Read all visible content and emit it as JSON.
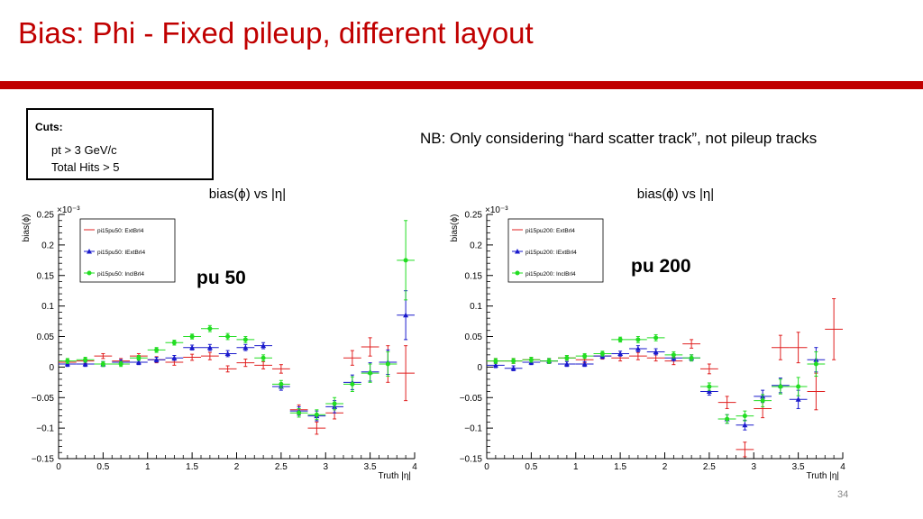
{
  "slide": {
    "title": "Bias: Phi - Fixed pileup, different layout",
    "cuts_title": "Cuts:",
    "cuts": [
      "pt > 3 GeV/c",
      "Total Hits > 5"
    ],
    "note": "NB: Only considering “hard scatter track”, not pileup tracks",
    "page_number": "34"
  },
  "colors": {
    "accent": "#c00000",
    "ext": "#e02020",
    "iext": "#1a1acc",
    "incl": "#22dd22"
  },
  "chart_data": [
    {
      "type": "scatter",
      "title": "bias(ϕ) vs |η|",
      "xlabel": "Truth |η|",
      "ylabel": "bias(ϕ)",
      "exponent": "×10⁻³",
      "xlim": [
        0,
        4
      ],
      "ylim": [
        -0.15,
        0.25
      ],
      "xticks": [
        "0",
        "0.5",
        "1",
        "1.5",
        "2",
        "2.5",
        "3",
        "3.5",
        "4"
      ],
      "yticks": [
        "0.25",
        "0.2",
        "0.15",
        "0.1",
        "0.05",
        "0",
        "−0.05",
        "−0.1",
        "−0.15"
      ],
      "annotation": "pu 50",
      "series": [
        {
          "name": "pi15pu50: ExtBrl4",
          "marker": "none",
          "color": "ext",
          "x": [
            0.1,
            0.3,
            0.5,
            0.7,
            0.9,
            1.1,
            1.3,
            1.5,
            1.7,
            1.9,
            2.1,
            2.3,
            2.5,
            2.7,
            2.9,
            3.1,
            3.3,
            3.5,
            3.7,
            3.9
          ],
          "y": [
            0.008,
            0.01,
            0.018,
            0.01,
            0.018,
            0.012,
            0.008,
            0.016,
            0.018,
            -0.003,
            0.007,
            0.003,
            -0.003,
            -0.07,
            -0.1,
            -0.075,
            0.015,
            0.033,
            0.005,
            -0.01
          ],
          "err": [
            0.004,
            0.004,
            0.004,
            0.004,
            0.004,
            0.005,
            0.005,
            0.005,
            0.006,
            0.005,
            0.006,
            0.006,
            0.007,
            0.008,
            0.01,
            0.01,
            0.012,
            0.015,
            0.03,
            0.045
          ]
        },
        {
          "name": "pi15pu50: IExtBrl4",
          "marker": "triangle",
          "color": "iext",
          "x": [
            0.1,
            0.3,
            0.5,
            0.7,
            0.9,
            1.1,
            1.3,
            1.5,
            1.7,
            1.9,
            2.1,
            2.3,
            2.5,
            2.7,
            2.9,
            3.1,
            3.3,
            3.5,
            3.7,
            3.9
          ],
          "y": [
            0.005,
            0.005,
            0.005,
            0.008,
            0.008,
            0.012,
            0.015,
            0.032,
            0.032,
            0.022,
            0.032,
            0.035,
            -0.032,
            -0.072,
            -0.08,
            -0.065,
            -0.025,
            -0.008,
            0.008,
            0.085
          ],
          "err": [
            0.004,
            0.004,
            0.004,
            0.004,
            0.004,
            0.004,
            0.004,
            0.004,
            0.005,
            0.005,
            0.005,
            0.005,
            0.006,
            0.007,
            0.008,
            0.01,
            0.012,
            0.015,
            0.02,
            0.04
          ]
        },
        {
          "name": "pi15pu50: InclBrl4",
          "marker": "circle",
          "color": "incl",
          "x": [
            0.1,
            0.3,
            0.5,
            0.7,
            0.9,
            1.1,
            1.3,
            1.5,
            1.7,
            1.9,
            2.1,
            2.3,
            2.5,
            2.7,
            2.9,
            3.1,
            3.3,
            3.5,
            3.7,
            3.9
          ],
          "y": [
            0.01,
            0.012,
            0.005,
            0.005,
            0.015,
            0.028,
            0.04,
            0.05,
            0.063,
            0.05,
            0.045,
            0.015,
            -0.028,
            -0.075,
            -0.078,
            -0.06,
            -0.028,
            -0.01,
            0.005,
            0.175
          ],
          "err": [
            0.004,
            0.004,
            0.004,
            0.004,
            0.004,
            0.004,
            0.004,
            0.004,
            0.005,
            0.005,
            0.005,
            0.005,
            0.006,
            0.007,
            0.008,
            0.01,
            0.012,
            0.015,
            0.02,
            0.065
          ]
        }
      ]
    },
    {
      "type": "scatter",
      "title": "bias(ϕ) vs |η|",
      "xlabel": "Truth |η|",
      "ylabel": "bias(ϕ)",
      "exponent": "×10⁻³",
      "xlim": [
        0,
        4
      ],
      "ylim": [
        -0.15,
        0.25
      ],
      "xticks": [
        "0",
        "0.5",
        "1",
        "1.5",
        "2",
        "2.5",
        "3",
        "3.5",
        "4"
      ],
      "yticks": [
        "0.25",
        "0.2",
        "0.15",
        "0.1",
        "0.05",
        "0",
        "−0.05",
        "−0.1",
        "−0.15"
      ],
      "annotation": "pu 200",
      "series": [
        {
          "name": "pi15pu200: ExtBrl4",
          "marker": "none",
          "color": "ext",
          "x": [
            0.1,
            0.3,
            0.5,
            0.7,
            0.9,
            1.1,
            1.3,
            1.5,
            1.7,
            1.9,
            2.1,
            2.3,
            2.5,
            2.7,
            2.9,
            3.1,
            3.3,
            3.5,
            3.7,
            3.9
          ],
          "y": [
            0.01,
            0.01,
            0.012,
            0.01,
            0.015,
            0.012,
            0.018,
            0.015,
            0.018,
            0.015,
            0.01,
            0.038,
            -0.003,
            -0.058,
            -0.135,
            -0.068,
            0.032,
            0.032,
            -0.04,
            0.062
          ],
          "err": [
            0.004,
            0.004,
            0.004,
            0.004,
            0.004,
            0.005,
            0.005,
            0.005,
            0.006,
            0.005,
            0.006,
            0.007,
            0.008,
            0.01,
            0.012,
            0.015,
            0.02,
            0.025,
            0.03,
            0.05
          ]
        },
        {
          "name": "pi15pu200: IExtBrl4",
          "marker": "triangle",
          "color": "iext",
          "x": [
            0.1,
            0.3,
            0.5,
            0.7,
            0.9,
            1.1,
            1.3,
            1.5,
            1.7,
            1.9,
            2.1,
            2.3,
            2.5,
            2.7,
            2.9,
            3.1,
            3.3,
            3.5,
            3.7
          ],
          "y": [
            0.003,
            -0.002,
            0.008,
            0.01,
            0.005,
            0.005,
            0.018,
            0.022,
            0.03,
            0.025,
            0.015,
            0.015,
            -0.04,
            -0.085,
            -0.095,
            -0.048,
            -0.03,
            -0.053,
            0.012
          ],
          "err": [
            0.004,
            0.004,
            0.004,
            0.004,
            0.004,
            0.004,
            0.004,
            0.004,
            0.005,
            0.005,
            0.005,
            0.005,
            0.006,
            0.007,
            0.008,
            0.01,
            0.012,
            0.015,
            0.02
          ]
        },
        {
          "name": "pi15pu200: InclBrl4",
          "marker": "circle",
          "color": "incl",
          "x": [
            0.1,
            0.3,
            0.5,
            0.7,
            0.9,
            1.1,
            1.3,
            1.5,
            1.7,
            1.9,
            2.1,
            2.3,
            2.5,
            2.7,
            2.9,
            3.1,
            3.3,
            3.5,
            3.7
          ],
          "y": [
            0.01,
            0.01,
            0.012,
            0.01,
            0.015,
            0.018,
            0.022,
            0.045,
            0.045,
            0.048,
            0.02,
            0.015,
            -0.032,
            -0.085,
            -0.08,
            -0.055,
            -0.032,
            -0.032,
            0.005
          ],
          "err": [
            0.004,
            0.004,
            0.004,
            0.004,
            0.004,
            0.004,
            0.004,
            0.004,
            0.005,
            0.005,
            0.005,
            0.005,
            0.006,
            0.007,
            0.008,
            0.01,
            0.012,
            0.015,
            0.02
          ]
        }
      ]
    }
  ]
}
